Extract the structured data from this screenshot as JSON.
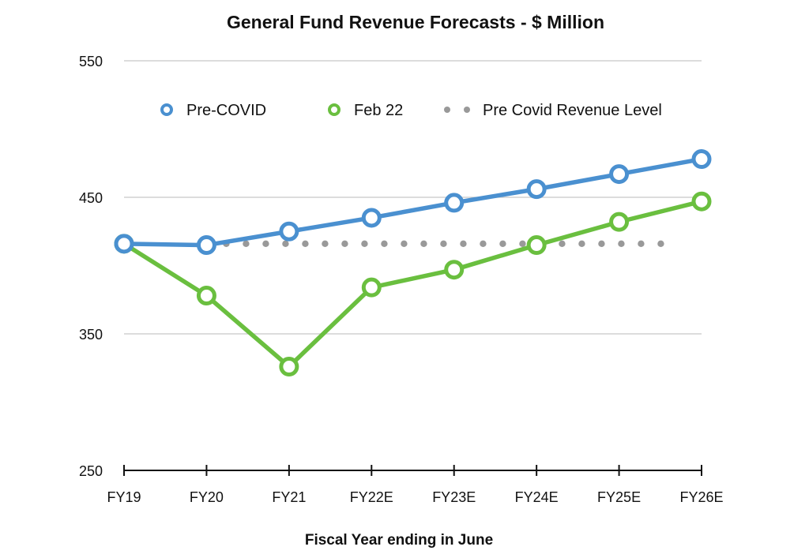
{
  "chart_data": {
    "type": "line",
    "title": "General Fund Revenue Forecasts - $ Million",
    "xlabel": "Fiscal Year ending in June",
    "ylabel": "",
    "ylim": [
      250,
      550
    ],
    "yticks": [
      250,
      350,
      450,
      550
    ],
    "grid": true,
    "legend_position": "top",
    "categories": [
      "FY19",
      "FY20",
      "FY21",
      "FY22E",
      "FY23E",
      "FY24E",
      "FY25E",
      "FY26E"
    ],
    "series": [
      {
        "name": "Pre-COVID",
        "style": "line-marker",
        "color": "#4a90d0",
        "values": [
          416,
          415,
          425,
          435,
          446,
          456,
          467,
          478
        ]
      },
      {
        "name": "Feb 22",
        "style": "line-marker",
        "color": "#6abf3f",
        "values": [
          416,
          378,
          326,
          384,
          397,
          415,
          432,
          447
        ]
      },
      {
        "name": "Pre Covid Revenue Level",
        "style": "dotted",
        "color": "#999999",
        "values": [
          null,
          416,
          416,
          416,
          416,
          416,
          416,
          416
        ]
      }
    ]
  }
}
